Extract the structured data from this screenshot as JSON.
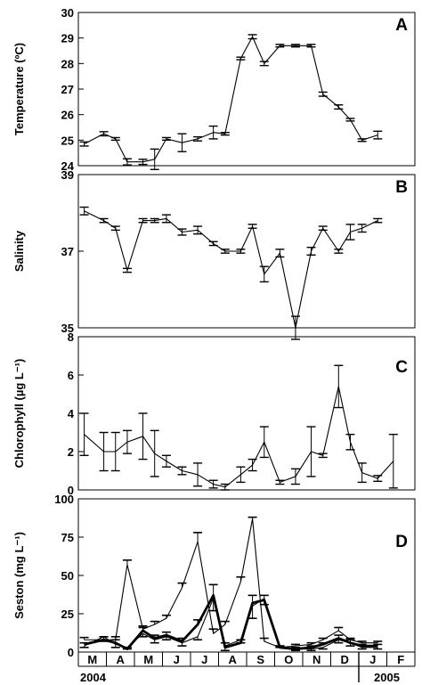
{
  "x_axis": {
    "months": [
      "M",
      "A",
      "M",
      "J",
      "J",
      "A",
      "S",
      "O",
      "N",
      "D",
      "J",
      "F"
    ],
    "years": [
      "2004",
      "2005"
    ]
  },
  "chart_data": [
    {
      "type": "line",
      "panel": "A",
      "ylabel": "Temperature (ºC)",
      "ylim": [
        24,
        30
      ],
      "yticks": [
        24,
        25,
        26,
        27,
        28,
        29,
        30
      ],
      "series": [
        {
          "points": [
            [
              0.0,
              24.85
            ],
            [
              0.5,
              25.25
            ],
            [
              0.8,
              25.05
            ],
            [
              1.1,
              24.15
            ],
            [
              1.5,
              24.15
            ],
            [
              1.8,
              24.25
            ],
            [
              2.1,
              25.05
            ],
            [
              2.5,
              24.9
            ],
            [
              2.9,
              25.05
            ],
            [
              3.3,
              25.3
            ],
            [
              3.6,
              25.25
            ],
            [
              4.0,
              28.2
            ],
            [
              4.3,
              29.05
            ],
            [
              4.6,
              28.0
            ],
            [
              5.0,
              28.7
            ],
            [
              5.4,
              28.7
            ],
            [
              5.8,
              28.7
            ],
            [
              6.1,
              26.8
            ],
            [
              6.5,
              26.3
            ],
            [
              6.8,
              25.8
            ],
            [
              7.1,
              25.0
            ],
            [
              7.5,
              25.2
            ]
          ],
          "errors": [
            0.08,
            0.08,
            0.05,
            0.12,
            0.1,
            0.4,
            0.05,
            0.35,
            0.08,
            0.25,
            0.05,
            0.05,
            0.08,
            0.08,
            0.05,
            0.05,
            0.05,
            0.08,
            0.08,
            0.05,
            0.05,
            0.15
          ]
        }
      ]
    },
    {
      "type": "line",
      "panel": "B",
      "ylabel": "Salinity",
      "ylim": [
        35,
        39
      ],
      "yticks": [
        35,
        37,
        39
      ],
      "series": [
        {
          "points": [
            [
              0.0,
              38.05
            ],
            [
              0.5,
              37.8
            ],
            [
              0.8,
              37.6
            ],
            [
              1.1,
              36.5
            ],
            [
              1.5,
              37.8
            ],
            [
              1.8,
              37.8
            ],
            [
              2.1,
              37.85
            ],
            [
              2.5,
              37.5
            ],
            [
              2.9,
              37.55
            ],
            [
              3.3,
              37.2
            ],
            [
              3.6,
              37.0
            ],
            [
              4.0,
              37.0
            ],
            [
              4.3,
              37.65
            ],
            [
              4.6,
              36.4
            ],
            [
              5.0,
              36.95
            ],
            [
              5.4,
              35.0
            ],
            [
              5.8,
              37.0
            ],
            [
              6.1,
              37.6
            ],
            [
              6.5,
              37.0
            ],
            [
              6.8,
              37.5
            ],
            [
              7.1,
              37.6
            ],
            [
              7.5,
              37.8
            ]
          ],
          "errors": [
            0.1,
            0.05,
            0.05,
            0.05,
            0.05,
            0.05,
            0.1,
            0.08,
            0.1,
            0.05,
            0.05,
            0.05,
            0.05,
            0.2,
            0.1,
            0.3,
            0.1,
            0.05,
            0.05,
            0.2,
            0.1,
            0.05
          ]
        }
      ]
    },
    {
      "type": "line",
      "panel": "C",
      "ylabel": "Chlorophyll (µg L⁻¹)",
      "ylim": [
        0,
        8
      ],
      "yticks": [
        0,
        2,
        4,
        6,
        8
      ],
      "series": [
        {
          "points": [
            [
              0.0,
              2.9
            ],
            [
              0.5,
              2.0
            ],
            [
              0.8,
              2.0
            ],
            [
              1.1,
              2.5
            ],
            [
              1.5,
              2.8
            ],
            [
              1.8,
              1.9
            ],
            [
              2.1,
              1.5
            ],
            [
              2.5,
              1.0
            ],
            [
              2.9,
              0.8
            ],
            [
              3.3,
              0.3
            ],
            [
              3.6,
              0.15
            ],
            [
              4.0,
              0.8
            ],
            [
              4.3,
              1.3
            ],
            [
              4.6,
              2.5
            ],
            [
              5.0,
              0.4
            ],
            [
              5.4,
              0.7
            ],
            [
              5.8,
              2.0
            ],
            [
              6.1,
              1.8
            ],
            [
              6.5,
              5.4
            ],
            [
              6.8,
              2.5
            ],
            [
              7.1,
              0.9
            ],
            [
              7.5,
              0.6
            ],
            [
              7.9,
              1.5
            ]
          ],
          "errors": [
            1.1,
            1.0,
            1.0,
            0.6,
            1.2,
            1.2,
            0.3,
            0.2,
            0.6,
            0.2,
            0.15,
            0.4,
            0.3,
            0.8,
            0.1,
            0.4,
            1.3,
            0.1,
            1.1,
            0.4,
            0.5,
            0.15,
            1.4
          ]
        }
      ]
    },
    {
      "type": "line",
      "panel": "D",
      "ylabel": "Seston (mg L⁻¹)",
      "ylim": [
        0,
        100
      ],
      "yticks": [
        0,
        25,
        50,
        75,
        100
      ],
      "series": [
        {
          "style": "thin-upper",
          "points": [
            [
              0.0,
              8
            ],
            [
              0.5,
              8
            ],
            [
              0.8,
              8
            ],
            [
              1.1,
              57
            ],
            [
              1.5,
              15
            ],
            [
              1.8,
              18
            ],
            [
              2.1,
              22
            ],
            [
              2.5,
              42
            ],
            [
              2.9,
              72
            ],
            [
              3.3,
              12
            ],
            [
              3.6,
              18
            ],
            [
              4.0,
              46
            ],
            [
              4.3,
              87
            ],
            [
              4.6,
              7
            ],
            [
              5.0,
              3
            ],
            [
              5.4,
              4
            ],
            [
              5.8,
              5
            ],
            [
              6.1,
              8
            ],
            [
              6.5,
              14
            ],
            [
              6.8,
              8
            ],
            [
              7.1,
              6
            ],
            [
              7.5,
              6
            ]
          ],
          "errors": [
            1.5,
            2,
            2,
            3,
            2,
            2,
            2,
            3,
            6,
            3,
            2,
            3,
            1,
            2,
            1,
            1,
            1,
            1,
            2,
            1,
            1,
            1
          ]
        },
        {
          "style": "thin-lower",
          "points": [
            [
              0.0,
              4
            ],
            [
              0.5,
              10
            ],
            [
              0.8,
              5
            ],
            [
              1.1,
              3
            ],
            [
              1.5,
              12
            ],
            [
              1.8,
              8
            ],
            [
              2.1,
              10
            ],
            [
              2.5,
              6
            ],
            [
              2.9,
              10
            ],
            [
              3.3,
              35
            ],
            [
              3.6,
              4
            ],
            [
              4.0,
              8
            ],
            [
              4.3,
              30
            ],
            [
              4.6,
              35
            ],
            [
              5.0,
              4
            ],
            [
              5.4,
              2
            ],
            [
              5.8,
              2
            ],
            [
              6.1,
              3
            ],
            [
              6.5,
              8
            ],
            [
              6.8,
              6
            ],
            [
              7.1,
              3
            ],
            [
              7.5,
              3
            ]
          ],
          "errors": [
            1,
            3,
            2,
            1,
            2,
            2,
            2,
            2,
            2,
            8,
            3,
            2,
            8,
            4,
            1,
            1,
            1,
            1,
            2,
            2,
            1,
            1
          ]
        },
        {
          "style": "thick",
          "points": [
            [
              0.0,
              5
            ],
            [
              0.5,
              8
            ],
            [
              0.8,
              6
            ],
            [
              1.1,
              2
            ],
            [
              1.5,
              14
            ],
            [
              1.8,
              9
            ],
            [
              2.1,
              11
            ],
            [
              2.5,
              7
            ],
            [
              2.9,
              18
            ],
            [
              3.3,
              37
            ],
            [
              3.6,
              3
            ],
            [
              4.0,
              6
            ],
            [
              4.3,
              32
            ],
            [
              4.6,
              34
            ],
            [
              5.0,
              3
            ],
            [
              5.4,
              2
            ],
            [
              5.8,
              3
            ],
            [
              6.1,
              5
            ],
            [
              6.5,
              9
            ],
            [
              6.8,
              6
            ],
            [
              7.1,
              4
            ],
            [
              7.5,
              4
            ]
          ],
          "errors": [
            1,
            2,
            2,
            1,
            2,
            2,
            2,
            2,
            3,
            7,
            3,
            2,
            5,
            3,
            1,
            1,
            1,
            1,
            2,
            2,
            1,
            1
          ]
        }
      ]
    }
  ]
}
